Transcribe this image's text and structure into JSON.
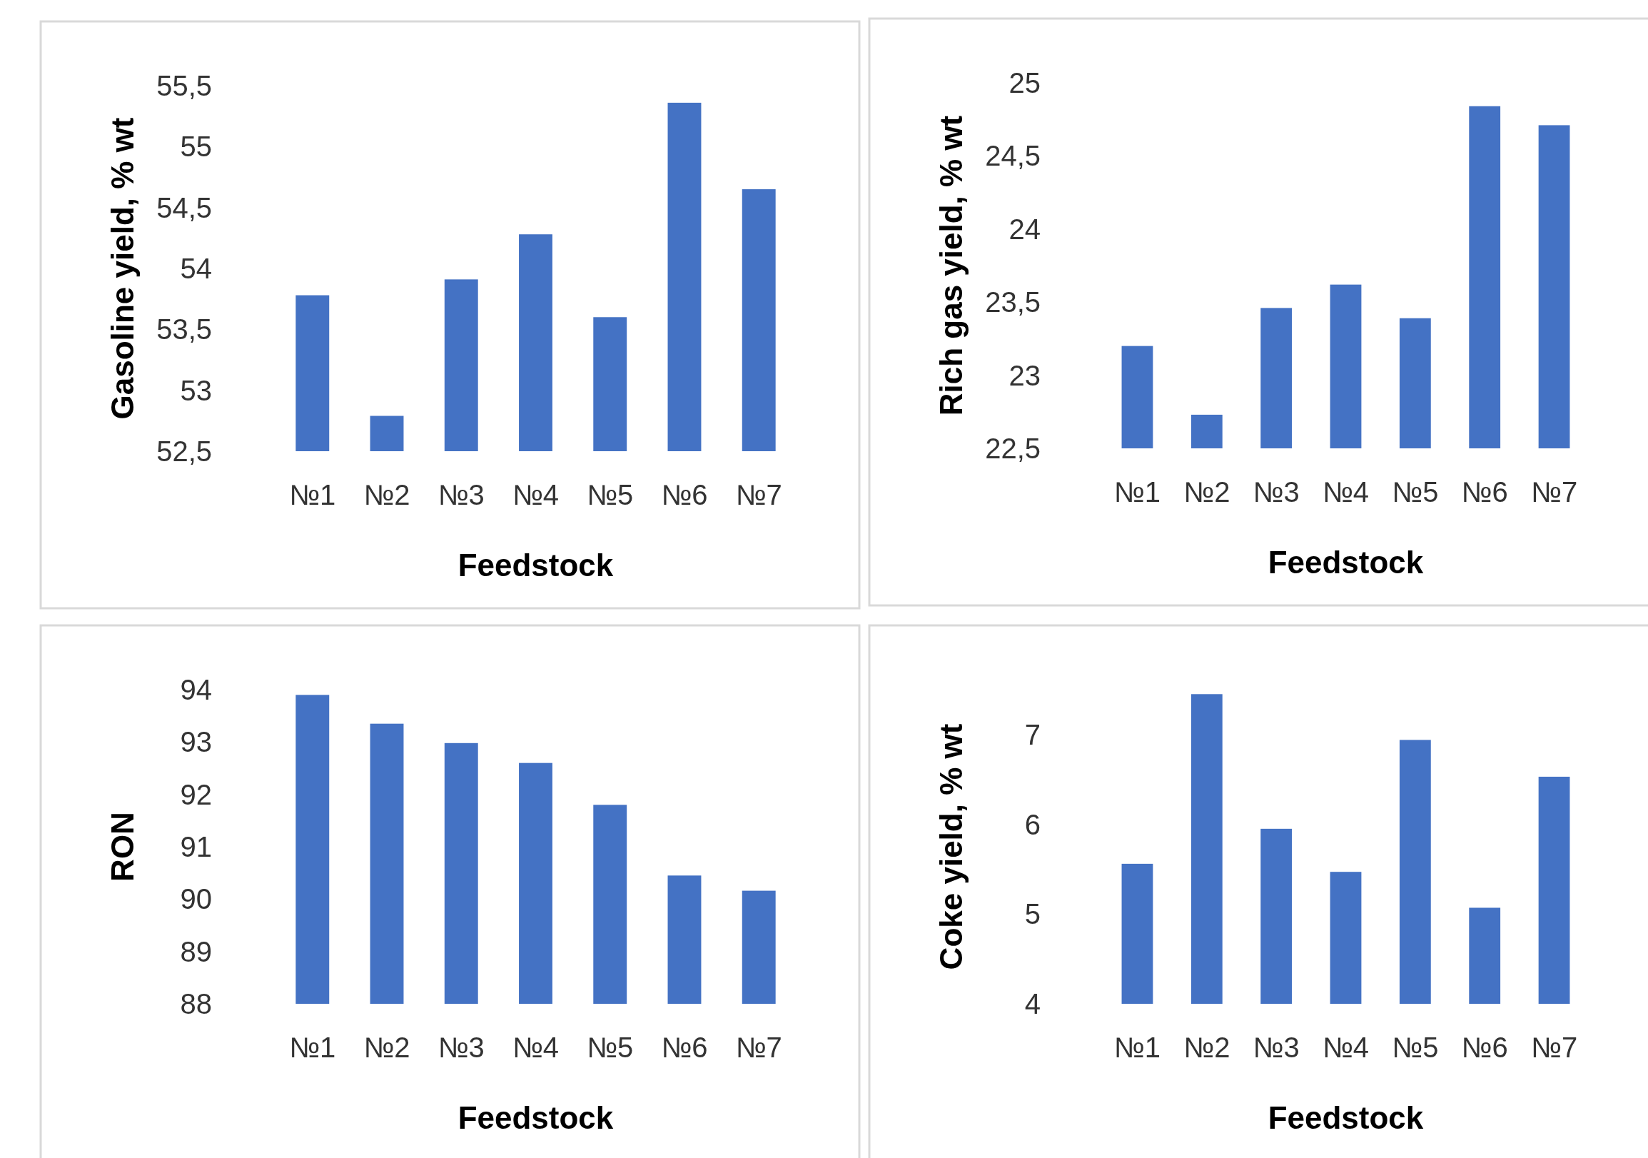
{
  "chart_data": [
    {
      "type": "bar",
      "xlabel": "Feedstock",
      "ylabel": "Gasoline yield, % wt",
      "categories": [
        "№1",
        "№2",
        "№3",
        "№4",
        "№5",
        "№6",
        "№7"
      ],
      "values": [
        53.78,
        52.79,
        53.91,
        54.28,
        53.6,
        55.36,
        54.65
      ],
      "color": "#4472c4",
      "ylim": [
        52.5,
        55.5
      ],
      "yticks": [
        {
          "value": 52.5,
          "label": "52,5"
        },
        53,
        {
          "value": 53.5,
          "label": "53,5"
        },
        54,
        {
          "value": 54.5,
          "label": "54,5"
        },
        55,
        {
          "value": 55.5,
          "label": "55,5"
        }
      ],
      "grid": false
    },
    {
      "type": "bar",
      "xlabel": "Feedstock",
      "ylabel": "Rich gas yield, % wt",
      "categories": [
        "№1",
        "№2",
        "№3",
        "№4",
        "№5",
        "№6",
        "№7"
      ],
      "values": [
        23.2,
        22.73,
        23.46,
        23.62,
        23.39,
        24.84,
        24.71
      ],
      "color": "#4472c4",
      "ylim": [
        22.5,
        25
      ],
      "yticks": [
        {
          "value": 22.5,
          "label": "22,5"
        },
        23,
        {
          "value": 23.5,
          "label": "23,5"
        },
        24,
        {
          "value": 24.5,
          "label": "24,5"
        },
        25
      ],
      "grid": false
    },
    {
      "type": "bar",
      "xlabel": "Feedstock",
      "ylabel": "RON",
      "categories": [
        "№1",
        "№2",
        "№3",
        "№4",
        "№5",
        "№6",
        "№7"
      ],
      "values": [
        93.9,
        93.35,
        92.98,
        92.6,
        91.8,
        90.45,
        90.16
      ],
      "color": "#4472c4",
      "ylim": [
        88,
        94
      ],
      "yticks": [
        88,
        89,
        90,
        91,
        92,
        93,
        94
      ],
      "grid": false
    },
    {
      "type": "bar",
      "xlabel": "Feedstock",
      "ylabel": "Coke yield, % wt",
      "categories": [
        "№1",
        "№2",
        "№3",
        "№4",
        "№5",
        "№6",
        "№7"
      ],
      "values": [
        5.56,
        7.45,
        5.95,
        5.47,
        6.94,
        5.07,
        6.53
      ],
      "color": "#4472c4",
      "ylim": [
        4,
        7.5
      ],
      "yticks": [
        4,
        5,
        6,
        7
      ],
      "grid": false
    }
  ]
}
